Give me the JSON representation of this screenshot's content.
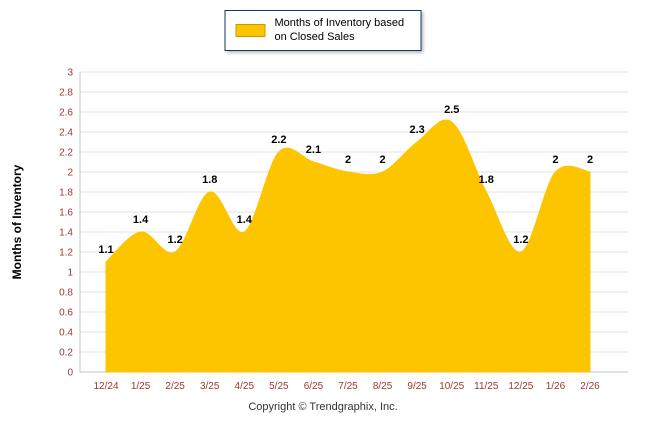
{
  "legend": {
    "label": "Months of Inventory based on Closed Sales"
  },
  "footer": {
    "copyright": "Copyright © Trendgraphix, Inc."
  },
  "chart_data": {
    "type": "area",
    "title": "",
    "series_name": "Months of Inventory based on Closed Sales",
    "categories": [
      "12/24",
      "1/25",
      "2/25",
      "3/25",
      "4/25",
      "5/25",
      "6/25",
      "7/25",
      "8/25",
      "9/25",
      "10/25",
      "11/25",
      "12/25",
      "1/26",
      "2/26"
    ],
    "values": [
      1.1,
      1.4,
      1.2,
      1.8,
      1.4,
      2.2,
      2.1,
      2,
      2,
      2.3,
      2.5,
      1.8,
      1.2,
      2,
      2
    ],
    "xlabel": "",
    "ylabel": "Months of Inventory",
    "ylim": [
      0,
      3
    ],
    "yticks": [
      0,
      0.2,
      0.4,
      0.6,
      0.8,
      1,
      1.2,
      1.4,
      1.6,
      1.8,
      2,
      2.2,
      2.4,
      2.6,
      2.8,
      3
    ],
    "grid": true,
    "legend_position": "top",
    "colors": {
      "area": "#FDC500",
      "swatch_border": "#C79A00",
      "axis_text": "#993734",
      "data_label": "#000000",
      "grid": "#E0E0E0",
      "axis_line": "#C6C6C6",
      "legend_border": "#17375E"
    }
  }
}
